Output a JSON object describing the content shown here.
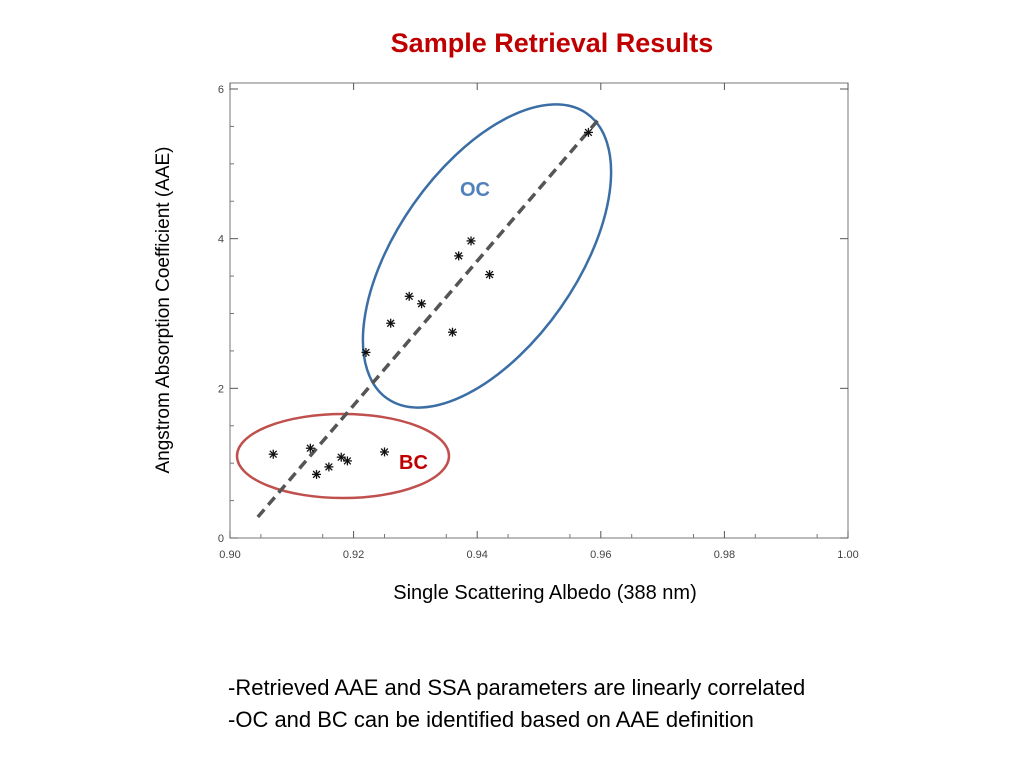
{
  "slide": {
    "title": "Sample Retrieval Results",
    "bullets": [
      "-Retrieved AAE and SSA parameters are linearly correlated",
      "-OC and BC can be identified based on AAE definition"
    ]
  },
  "chart_data": {
    "type": "scatter",
    "xlabel": "Single Scattering Albedo (388 nm)",
    "ylabel": "Angstrom Absorption Coefficient (AAE)",
    "xlim": [
      0.9,
      1.0
    ],
    "ylim": [
      0,
      6
    ],
    "x_ticks": [
      "0.90",
      "0.92",
      "0.94",
      "0.96",
      "0.98",
      "1.00"
    ],
    "y_ticks": [
      "0",
      "2",
      "4",
      "6"
    ],
    "marker": "asterisk",
    "grid": false,
    "points": [
      {
        "x": 0.907,
        "y": 1.12
      },
      {
        "x": 0.913,
        "y": 1.2
      },
      {
        "x": 0.914,
        "y": 0.85
      },
      {
        "x": 0.916,
        "y": 0.95
      },
      {
        "x": 0.918,
        "y": 1.08
      },
      {
        "x": 0.919,
        "y": 1.03
      },
      {
        "x": 0.925,
        "y": 1.15
      },
      {
        "x": 0.922,
        "y": 2.48
      },
      {
        "x": 0.926,
        "y": 2.87
      },
      {
        "x": 0.929,
        "y": 3.23
      },
      {
        "x": 0.931,
        "y": 3.13
      },
      {
        "x": 0.936,
        "y": 2.75
      },
      {
        "x": 0.937,
        "y": 3.77
      },
      {
        "x": 0.939,
        "y": 3.97
      },
      {
        "x": 0.942,
        "y": 3.52
      },
      {
        "x": 0.958,
        "y": 5.42
      }
    ],
    "trend_line": {
      "x": [
        0.9045,
        0.9595
      ],
      "y": [
        0.28,
        5.58
      ],
      "style": "dashed",
      "color": "#555555"
    },
    "groups": [
      {
        "label": "OC",
        "color": "#3a6ea5",
        "label_color": "#4f81bd"
      },
      {
        "label": "BC",
        "color": "#c0504d",
        "label_color": "#c00000"
      }
    ]
  }
}
